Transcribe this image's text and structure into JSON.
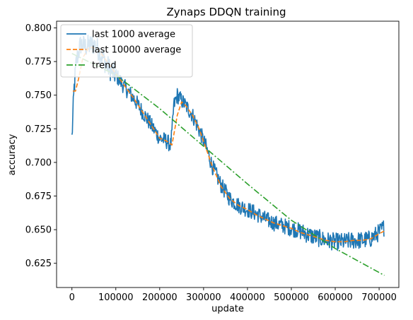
{
  "chart_data": {
    "type": "line",
    "title": "Zynaps DDQN training",
    "xlabel": "update",
    "ylabel": "accuracy",
    "xlim": [
      -35000,
      745000
    ],
    "ylim": [
      0.607,
      0.805
    ],
    "x_ticks": [
      0,
      100000,
      200000,
      300000,
      400000,
      500000,
      600000,
      700000
    ],
    "x_tick_labels": [
      "0",
      "100000",
      "200000",
      "300000",
      "400000",
      "500000",
      "600000",
      "700000"
    ],
    "y_ticks": [
      0.625,
      0.65,
      0.675,
      0.7,
      0.725,
      0.75,
      0.775,
      0.8
    ],
    "y_tick_labels": [
      "0.625",
      "0.650",
      "0.675",
      "0.700",
      "0.725",
      "0.750",
      "0.775",
      "0.800"
    ],
    "grid": false,
    "legend": {
      "position": "top-left"
    },
    "series": [
      {
        "name": "last 1000 average",
        "color": "#1f77b4",
        "style": "solid",
        "noise": 0.006,
        "x": [
          0,
          5000,
          10000,
          15000,
          20000,
          30000,
          40000,
          50000,
          60000,
          70000,
          80000,
          90000,
          100000,
          120000,
          140000,
          160000,
          180000,
          200000,
          215000,
          225000,
          228000,
          232000,
          240000,
          250000,
          260000,
          275000,
          290000,
          305000,
          320000,
          340000,
          360000,
          380000,
          400000,
          420000,
          440000,
          460000,
          480000,
          500000,
          520000,
          540000,
          560000,
          580000,
          600000,
          620000,
          640000,
          660000,
          680000,
          700000,
          712000
        ],
        "y": [
          0.718,
          0.755,
          0.775,
          0.782,
          0.788,
          0.786,
          0.787,
          0.788,
          0.784,
          0.778,
          0.772,
          0.768,
          0.765,
          0.756,
          0.748,
          0.738,
          0.728,
          0.718,
          0.716,
          0.713,
          0.722,
          0.742,
          0.75,
          0.746,
          0.742,
          0.735,
          0.724,
          0.712,
          0.697,
          0.683,
          0.673,
          0.668,
          0.665,
          0.662,
          0.658,
          0.655,
          0.653,
          0.651,
          0.649,
          0.646,
          0.644,
          0.642,
          0.641,
          0.641,
          0.642,
          0.642,
          0.643,
          0.648,
          0.652
        ]
      },
      {
        "name": "last 10000 average",
        "color": "#ff7f0e",
        "style": "dashed",
        "x": [
          2000,
          8000,
          15000,
          25000,
          40000,
          60000,
          80000,
          100000,
          120000,
          140000,
          160000,
          180000,
          200000,
          215000,
          228000,
          240000,
          250000,
          260000,
          275000,
          290000,
          305000,
          320000,
          340000,
          360000,
          380000,
          400000,
          420000,
          440000,
          460000,
          480000,
          500000,
          520000,
          540000,
          560000,
          580000,
          600000,
          620000,
          640000,
          660000,
          680000,
          700000,
          712000
        ],
        "y": [
          0.753,
          0.753,
          0.762,
          0.778,
          0.786,
          0.784,
          0.775,
          0.766,
          0.757,
          0.748,
          0.738,
          0.728,
          0.718,
          0.716,
          0.713,
          0.735,
          0.745,
          0.742,
          0.735,
          0.725,
          0.711,
          0.697,
          0.682,
          0.673,
          0.668,
          0.665,
          0.661,
          0.658,
          0.655,
          0.653,
          0.651,
          0.648,
          0.646,
          0.644,
          0.642,
          0.641,
          0.641,
          0.642,
          0.642,
          0.643,
          0.647,
          0.649
        ]
      },
      {
        "name": "trend",
        "color": "#2ca02c",
        "style": "dashdot",
        "x": [
          0,
          100000,
          200000,
          300000,
          400000,
          500000,
          600000,
          712000
        ],
        "y": [
          0.781,
          0.765,
          0.74,
          0.712,
          0.684,
          0.657,
          0.636,
          0.616
        ]
      }
    ]
  }
}
